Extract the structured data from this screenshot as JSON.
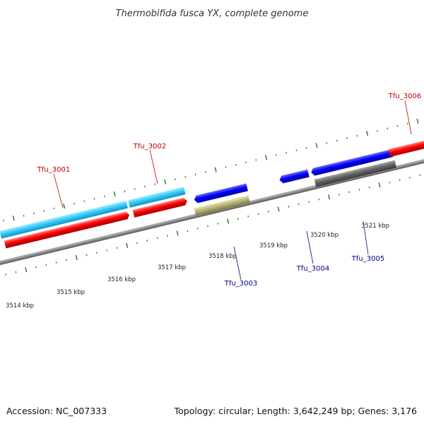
{
  "title": "Thermobifida fusca YX, complete genome",
  "footer": {
    "accession": "Accession: NC_007333",
    "summary": "Topology: circular; Length: 3,642,249 bp; Genes: 3,176"
  },
  "colors": {
    "backbone": "#8c8c8c",
    "tick_mark": "#2e8b2e",
    "forward_label": "#c00000",
    "reverse_label": "#00008b",
    "cds_forward": "#ff0000",
    "cds_reverse": "#0000ff",
    "gene_light_blue": "#33ccff",
    "gene_tan": "#b8b878",
    "gene_gray": "#666666"
  },
  "scale_labels": [
    {
      "kbp": 3514,
      "text": "3514 kbp"
    },
    {
      "kbp": 3515,
      "text": "3515 kbp"
    },
    {
      "kbp": 3516,
      "text": "3516 kbp"
    },
    {
      "kbp": 3517,
      "text": "3517 kbp"
    },
    {
      "kbp": 3518,
      "text": "3518 kbp"
    },
    {
      "kbp": 3519,
      "text": "3519 kbp"
    },
    {
      "kbp": 3520,
      "text": "3520 kbp"
    },
    {
      "kbp": 3521,
      "text": "3521 kbp"
    }
  ],
  "genes": [
    {
      "label": "Tfu_3001",
      "strand": "forward"
    },
    {
      "label": "Tfu_3002",
      "strand": "forward"
    },
    {
      "label": "Tfu_3003",
      "strand": "reverse"
    },
    {
      "label": "Tfu_3004",
      "strand": "reverse"
    },
    {
      "label": "Tfu_3005",
      "strand": "reverse"
    },
    {
      "label": "Tfu_3006",
      "strand": "forward"
    }
  ]
}
